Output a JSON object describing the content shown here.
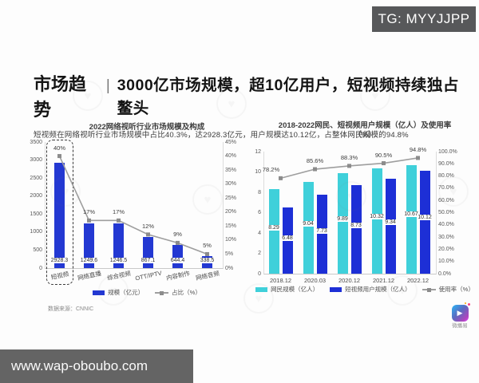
{
  "badges": {
    "tg": "TG: MYYJJPP",
    "url": "www.wap-oboubo.com"
  },
  "header": {
    "title_prefix": "市场趋势",
    "separator": "|",
    "title_main": "3000亿市场规模，超10亿用户，短视频持续独占鳌头",
    "subtitle": "短视频在网络视听行业市场规模中占比40.3%，达2928.3亿元，用户规模达10.12亿，占整体网民规模的94.8%"
  },
  "source_note": "数据来源：CNNIC",
  "logo_text": "微播易",
  "colors": {
    "bar_blue": "#2338d2",
    "bar_cyan": "#3fd0da",
    "bar_deep_blue": "#1d2fd6",
    "line_gray": "#9e9e9e",
    "badge_bg": "#57585a"
  },
  "chart_data": [
    {
      "type": "bar",
      "title": "2022网络视听行业市场规模及构成",
      "categories": [
        "短视频",
        "网络直播",
        "综合视频",
        "OTT/IPTV",
        "内容制作",
        "网络音频"
      ],
      "bar_series": [
        {
          "name": "规模（亿元）",
          "values": [
            2928.3,
            1249.6,
            1246.5,
            867.1,
            644.4,
            338.5
          ],
          "labels": [
            "2928.3",
            "1249.6",
            "1246.5",
            "867.1",
            "644.4",
            "338.5"
          ],
          "color": "#2338d2"
        }
      ],
      "line_series": {
        "name": "占比（%）",
        "values": [
          40,
          17,
          17,
          12,
          9,
          5
        ],
        "labels": [
          "40%",
          "17%",
          "17%",
          "12%",
          "9%",
          "5%"
        ],
        "color": "#9e9e9e"
      },
      "y_left": {
        "min": 0,
        "max": 3500,
        "step": 500,
        "ticks": [
          "3500",
          "3000",
          "2500",
          "2000",
          "1500",
          "1000",
          "500",
          "0"
        ]
      },
      "y_right": {
        "min": 0,
        "max": 45,
        "step": 5,
        "ticks": [
          "45%",
          "40%",
          "35%",
          "30%",
          "25%",
          "20%",
          "15%",
          "10%",
          "5%",
          "0%"
        ]
      },
      "highlight_index": 0,
      "legend": [
        {
          "type": "bar",
          "color": "#2338d2",
          "label": "规模（亿元）"
        },
        {
          "type": "line",
          "color": "#9e9e9e",
          "label": "占比（%）"
        }
      ]
    },
    {
      "type": "bar",
      "title": "2018-2022网民、短视频用户规模（亿人）及使用率",
      "title_line2": "（%）",
      "categories": [
        "2018.12",
        "2020.03",
        "2020.12",
        "2021.12",
        "2022.12"
      ],
      "bar_series": [
        {
          "name": "网民规模（亿人）",
          "values": [
            8.29,
            9.04,
            9.89,
            10.32,
            10.67
          ],
          "labels": [
            "8.29",
            "9.04",
            "9.89",
            "10.32",
            "10.67"
          ],
          "color": "#3fd0da"
        },
        {
          "name": "短视频用户规模（亿人）",
          "values": [
            6.48,
            7.73,
            8.73,
            9.34,
            10.12
          ],
          "labels": [
            "6.48",
            "7.73",
            "8.73",
            "9.34",
            "10.12"
          ],
          "color": "#1d2fd6"
        }
      ],
      "line_series": {
        "name": "使用率（%）",
        "values": [
          78.2,
          85.6,
          88.3,
          90.5,
          94.8
        ],
        "labels": [
          "78.2%",
          "85.6%",
          "88.3%",
          "90.5%",
          "94.8%"
        ],
        "color": "#9e9e9e"
      },
      "y_left": {
        "min": 0,
        "max": 12,
        "step": 2,
        "ticks": [
          "12",
          "10",
          "8",
          "6",
          "4",
          "2",
          "0"
        ]
      },
      "y_right": {
        "min": 0,
        "max": 100,
        "step": 10,
        "ticks": [
          "100.0%",
          "90.0%",
          "80.0%",
          "70.0%",
          "60.0%",
          "50.0%",
          "40.0%",
          "30.0%",
          "20.0%",
          "10.0%",
          "0.0%"
        ]
      },
      "highlight_index": null,
      "legend": [
        {
          "type": "bar",
          "color": "#3fd0da",
          "label": "网民规模（亿人）"
        },
        {
          "type": "bar",
          "color": "#1d2fd6",
          "label": "短视频用户规模（亿人）"
        },
        {
          "type": "line",
          "color": "#9e9e9e",
          "label": "使用率（%）"
        }
      ]
    }
  ]
}
